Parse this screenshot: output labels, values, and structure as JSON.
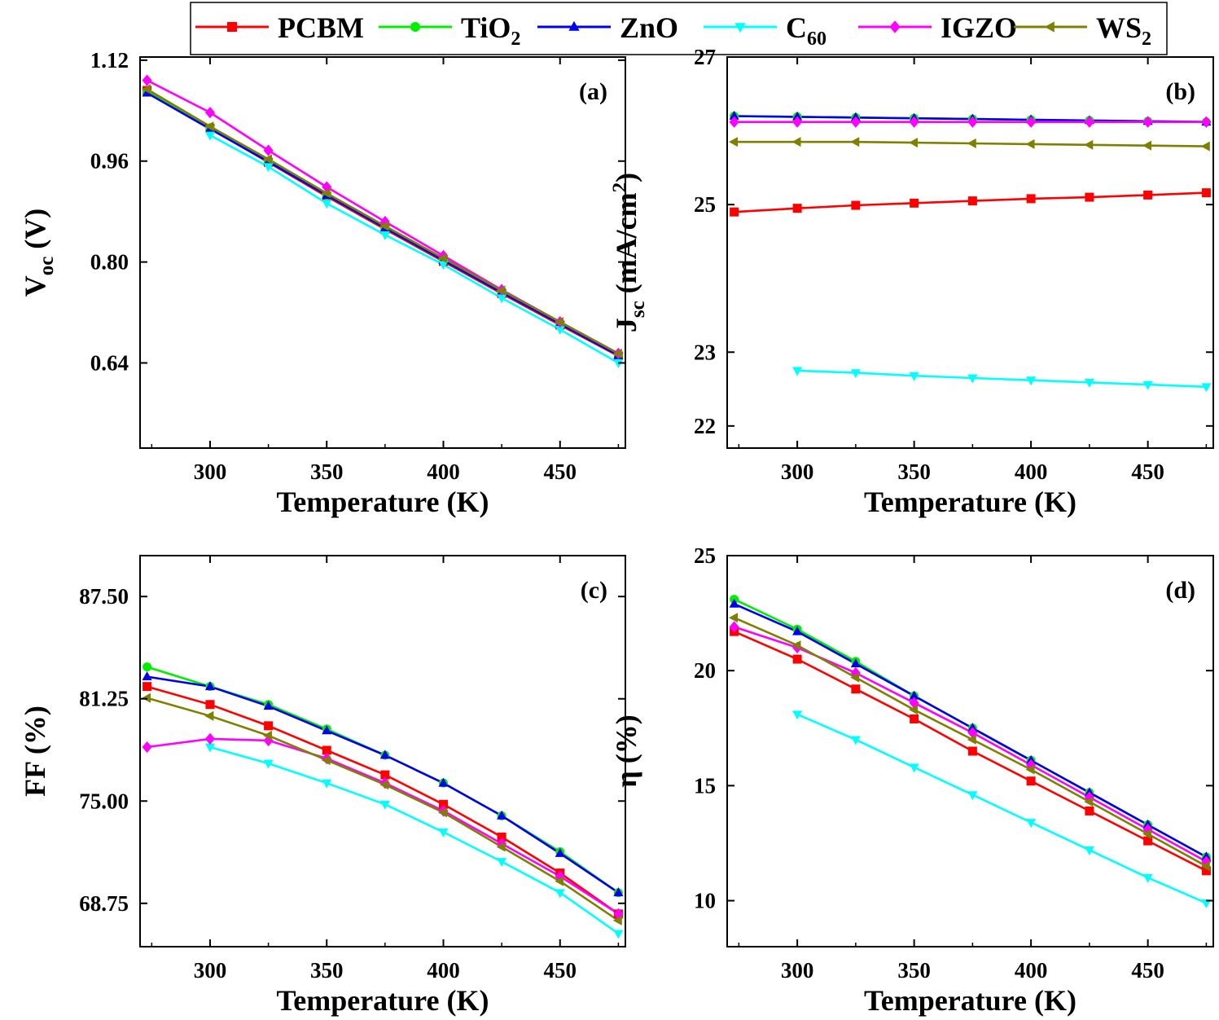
{
  "legend": {
    "items": [
      {
        "name": "PCBM",
        "main": "PCBM",
        "sub": "",
        "color": "#ff0000",
        "marker": "square"
      },
      {
        "name": "TiO2",
        "main": "TiO",
        "sub": "2",
        "color": "#00ee00",
        "marker": "circle"
      },
      {
        "name": "ZnO",
        "main": "ZnO",
        "sub": "",
        "color": "#0000ee",
        "marker": "triangle-up"
      },
      {
        "name": "C60",
        "main": "C",
        "sub": "60",
        "color": "#00ffff",
        "marker": "triangle-down"
      },
      {
        "name": "IGZO",
        "main": "IGZO",
        "sub": "",
        "color": "#ff00ff",
        "marker": "diamond"
      },
      {
        "name": "WS2",
        "main": "WS",
        "sub": "2",
        "color": "#808000",
        "marker": "triangle-left"
      }
    ]
  },
  "chart_data": [
    {
      "type": "line",
      "panel": "(a)",
      "xlabel": "Temperature (K)",
      "ylabel": {
        "main": "V",
        "sub": "oc",
        "rest": " (V)"
      },
      "xlim": [
        270,
        478
      ],
      "ylim": [
        0.505,
        1.125
      ],
      "xticks": [
        300,
        350,
        400,
        450
      ],
      "yticks": [
        0.64,
        0.8,
        0.96,
        1.12
      ],
      "yticklabels": [
        "0.64",
        "0.80",
        "0.96",
        "1.12"
      ],
      "series": [
        {
          "name": "PCBM",
          "x": [
            273,
            300,
            325,
            350,
            375,
            400,
            425,
            450,
            475
          ],
          "y": [
            1.072,
            1.012,
            0.958,
            0.904,
            0.852,
            0.801,
            0.75,
            0.7,
            0.651
          ]
        },
        {
          "name": "TiO2",
          "x": [
            273,
            300,
            325,
            350,
            375,
            400,
            425,
            450,
            475
          ],
          "y": [
            1.07,
            1.013,
            0.96,
            0.906,
            0.854,
            0.803,
            0.752,
            0.702,
            0.652
          ]
        },
        {
          "name": "ZnO",
          "x": [
            273,
            300,
            325,
            350,
            375,
            400,
            425,
            450,
            475
          ],
          "y": [
            1.068,
            1.011,
            0.959,
            0.906,
            0.854,
            0.803,
            0.752,
            0.702,
            0.652
          ]
        },
        {
          "name": "C60",
          "x": [
            300,
            325,
            350,
            375,
            400,
            425,
            450,
            475
          ],
          "y": [
            1.001,
            0.951,
            0.893,
            0.843,
            0.796,
            0.743,
            0.693,
            0.64
          ]
        },
        {
          "name": "IGZO",
          "x": [
            273,
            300,
            325,
            350,
            375,
            400,
            425,
            450,
            475
          ],
          "y": [
            1.088,
            1.037,
            0.977,
            0.919,
            0.864,
            0.81,
            0.756,
            0.705,
            0.655
          ]
        },
        {
          "name": "WS2",
          "x": [
            273,
            300,
            325,
            350,
            375,
            400,
            425,
            450,
            475
          ],
          "y": [
            1.074,
            1.015,
            0.963,
            0.909,
            0.857,
            0.806,
            0.755,
            0.705,
            0.655
          ]
        }
      ]
    },
    {
      "type": "line",
      "panel": "(b)",
      "xlabel": "Temperature (K)",
      "ylabel": {
        "main": "J",
        "sub": "sc",
        "rest": " (mA/cm",
        "sup": "2",
        "end": ")"
      },
      "xlim": [
        270,
        478
      ],
      "ylim": [
        21.7,
        27.0
      ],
      "xticks": [
        300,
        350,
        400,
        450
      ],
      "yticks": [
        22,
        23,
        25,
        27
      ],
      "yticklabels": [
        "22",
        "23",
        "25",
        "27"
      ],
      "series": [
        {
          "name": "PCBM",
          "x": [
            273,
            300,
            325,
            350,
            375,
            400,
            425,
            450,
            475
          ],
          "y": [
            24.9,
            24.95,
            24.99,
            25.02,
            25.05,
            25.08,
            25.1,
            25.13,
            25.16
          ]
        },
        {
          "name": "TiO2",
          "x": [
            273,
            300,
            325,
            350,
            375,
            400,
            425,
            450,
            475
          ],
          "y": [
            26.2,
            26.19,
            26.18,
            26.17,
            26.16,
            26.15,
            26.14,
            26.13,
            26.12
          ]
        },
        {
          "name": "ZnO",
          "x": [
            273,
            300,
            325,
            350,
            375,
            400,
            425,
            450,
            475
          ],
          "y": [
            26.2,
            26.19,
            26.18,
            26.17,
            26.16,
            26.15,
            26.14,
            26.13,
            26.12
          ]
        },
        {
          "name": "C60",
          "x": [
            300,
            325,
            350,
            375,
            400,
            425,
            450,
            475
          ],
          "y": [
            22.75,
            22.72,
            22.68,
            22.65,
            22.62,
            22.59,
            22.56,
            22.53
          ]
        },
        {
          "name": "IGZO",
          "x": [
            273,
            300,
            325,
            350,
            375,
            400,
            425,
            450,
            475
          ],
          "y": [
            26.12,
            26.12,
            26.12,
            26.12,
            26.12,
            26.12,
            26.12,
            26.12,
            26.12
          ]
        },
        {
          "name": "WS2",
          "x": [
            273,
            300,
            325,
            350,
            375,
            400,
            425,
            450,
            475
          ],
          "y": [
            25.85,
            25.85,
            25.85,
            25.84,
            25.83,
            25.82,
            25.81,
            25.8,
            25.79
          ]
        }
      ]
    },
    {
      "type": "line",
      "panel": "(c)",
      "xlabel": "Temperature (K)",
      "ylabel": {
        "main": "FF (%)",
        "sub": "",
        "rest": ""
      },
      "xlim": [
        270,
        478
      ],
      "ylim": [
        66.1,
        90.0
      ],
      "xticks": [
        300,
        350,
        400,
        450
      ],
      "yticks": [
        68.75,
        75.0,
        81.25,
        87.5
      ],
      "yticklabels": [
        "68.75",
        "75.00",
        "81.25",
        "87.50"
      ],
      "series": [
        {
          "name": "PCBM",
          "x": [
            273,
            300,
            325,
            350,
            375,
            400,
            425,
            450,
            475
          ],
          "y": [
            82.0,
            80.9,
            79.6,
            78.1,
            76.6,
            74.8,
            72.8,
            70.6,
            68.1
          ]
        },
        {
          "name": "TiO2",
          "x": [
            273,
            300,
            325,
            350,
            375,
            400,
            425,
            450,
            475
          ],
          "y": [
            83.2,
            82.0,
            80.9,
            79.4,
            77.8,
            76.1,
            74.1,
            71.9,
            69.4
          ]
        },
        {
          "name": "ZnO",
          "x": [
            273,
            300,
            325,
            350,
            375,
            400,
            425,
            450,
            475
          ],
          "y": [
            82.6,
            82.0,
            80.8,
            79.3,
            77.8,
            76.1,
            74.1,
            71.8,
            69.4
          ]
        },
        {
          "name": "C60",
          "x": [
            300,
            325,
            350,
            375,
            400,
            425,
            450,
            475
          ],
          "y": [
            78.3,
            77.3,
            76.1,
            74.8,
            73.1,
            71.3,
            69.4,
            66.9
          ]
        },
        {
          "name": "IGZO",
          "x": [
            273,
            300,
            325,
            350,
            375,
            400,
            425,
            450,
            475
          ],
          "y": [
            78.3,
            78.8,
            78.7,
            77.6,
            76.1,
            74.4,
            72.4,
            70.4,
            68.1
          ]
        },
        {
          "name": "WS2",
          "x": [
            273,
            300,
            325,
            350,
            375,
            400,
            425,
            450,
            475
          ],
          "y": [
            81.3,
            80.2,
            79.0,
            77.5,
            76.0,
            74.3,
            72.2,
            70.1,
            67.7
          ]
        }
      ]
    },
    {
      "type": "line",
      "panel": "(d)",
      "xlabel": "Temperature (K)",
      "ylabel": {
        "main": "η (%)",
        "sub": "",
        "rest": ""
      },
      "xlim": [
        270,
        478
      ],
      "ylim": [
        8.0,
        25.0
      ],
      "xticks": [
        300,
        350,
        400,
        450
      ],
      "yticks": [
        10,
        15,
        20,
        25
      ],
      "yticklabels": [
        "10",
        "15",
        "20",
        "25"
      ],
      "series": [
        {
          "name": "PCBM",
          "x": [
            273,
            300,
            325,
            350,
            375,
            400,
            425,
            450,
            475
          ],
          "y": [
            21.7,
            20.5,
            19.2,
            17.9,
            16.5,
            15.2,
            13.9,
            12.6,
            11.3
          ]
        },
        {
          "name": "TiO2",
          "x": [
            273,
            300,
            325,
            350,
            375,
            400,
            425,
            450,
            475
          ],
          "y": [
            23.1,
            21.8,
            20.4,
            18.9,
            17.5,
            16.1,
            14.7,
            13.3,
            11.9
          ]
        },
        {
          "name": "ZnO",
          "x": [
            273,
            300,
            325,
            350,
            375,
            400,
            425,
            450,
            475
          ],
          "y": [
            22.9,
            21.7,
            20.3,
            18.9,
            17.5,
            16.1,
            14.7,
            13.3,
            11.9
          ]
        },
        {
          "name": "C60",
          "x": [
            300,
            325,
            350,
            375,
            400,
            425,
            450,
            475
          ],
          "y": [
            18.1,
            17.0,
            15.8,
            14.6,
            13.4,
            12.2,
            11.0,
            9.9
          ]
        },
        {
          "name": "IGZO",
          "x": [
            273,
            300,
            325,
            350,
            375,
            400,
            425,
            450,
            475
          ],
          "y": [
            21.9,
            21.0,
            19.9,
            18.6,
            17.3,
            15.9,
            14.5,
            13.1,
            11.7
          ]
        },
        {
          "name": "WS2",
          "x": [
            273,
            300,
            325,
            350,
            375,
            400,
            425,
            450,
            475
          ],
          "y": [
            22.3,
            21.1,
            19.7,
            18.3,
            17.0,
            15.7,
            14.3,
            12.9,
            11.5
          ]
        }
      ]
    }
  ]
}
